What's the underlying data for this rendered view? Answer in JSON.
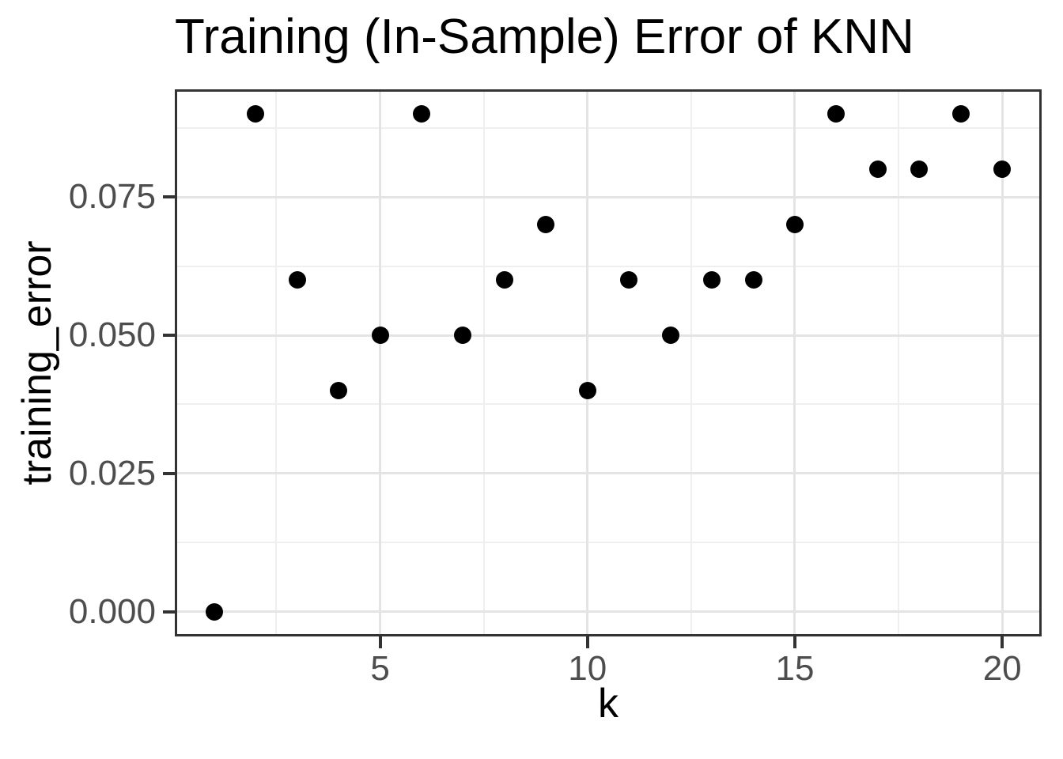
{
  "title": "Training (In-Sample) Error of KNN",
  "chart_data": {
    "type": "scatter",
    "title": "Training (In-Sample) Error of KNN",
    "xlabel": "k",
    "ylabel": "training_error",
    "x": [
      1,
      2,
      3,
      4,
      5,
      6,
      7,
      8,
      9,
      10,
      11,
      12,
      13,
      14,
      15,
      16,
      17,
      18,
      19,
      20
    ],
    "y": [
      0.0,
      0.09,
      0.06,
      0.04,
      0.05,
      0.09,
      0.05,
      0.06,
      0.07,
      0.04,
      0.06,
      0.05,
      0.06,
      0.06,
      0.07,
      0.09,
      0.08,
      0.08,
      0.09,
      0.08
    ],
    "series_name": "training_error",
    "xlim": [
      0.05,
      20.95
    ],
    "ylim": [
      -0.0045,
      0.0945
    ],
    "x_ticks": [
      {
        "value": 5,
        "label": "5"
      },
      {
        "value": 10,
        "label": "10"
      },
      {
        "value": 15,
        "label": "15"
      },
      {
        "value": 20,
        "label": "20"
      }
    ],
    "y_ticks": [
      {
        "value": 0.0,
        "label": "0.000"
      },
      {
        "value": 0.025,
        "label": "0.025"
      },
      {
        "value": 0.05,
        "label": "0.050"
      },
      {
        "value": 0.075,
        "label": "0.075"
      }
    ],
    "x_minor_gridlines": [
      2.5,
      7.5,
      12.5,
      17.5
    ],
    "y_minor_gridlines": [
      0.0125,
      0.0375,
      0.0625,
      0.0875
    ],
    "grid": "on",
    "legend": "none",
    "colors": {
      "point": "#000000",
      "grid_major": "#e4e4e4",
      "grid_minor": "#efefef",
      "panel_border": "#333333",
      "tick_mark": "#333333",
      "tick_label": "#4d4d4d",
      "axis_title": "#000000",
      "plot_title": "#000000",
      "background": "#ffffff"
    }
  }
}
